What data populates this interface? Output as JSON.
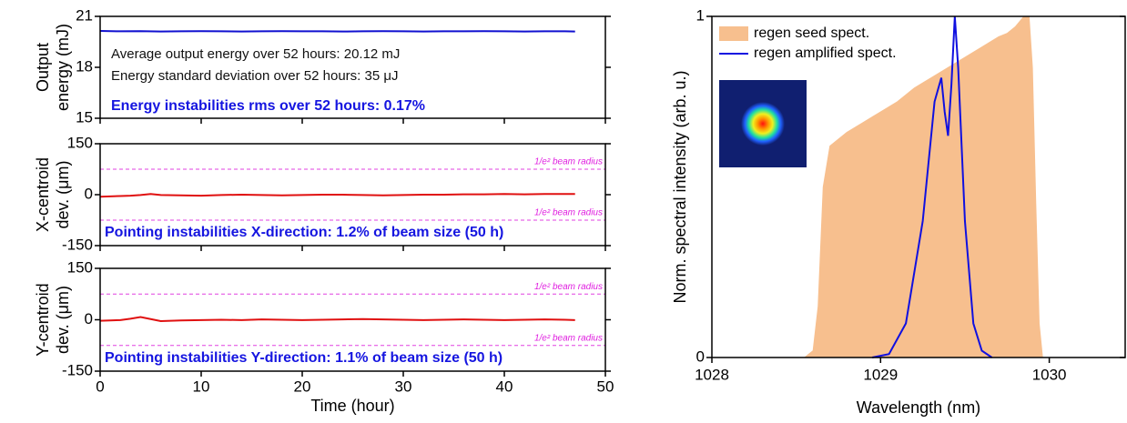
{
  "chart_data": [
    {
      "type": "line",
      "xlabel": "Time (hour)",
      "xlim": [
        0,
        50
      ],
      "xticks": [
        0,
        10,
        20,
        30,
        40,
        50
      ],
      "panels": [
        {
          "ylabel": [
            "Output",
            "energy (mJ)"
          ],
          "ylim": [
            15,
            21
          ],
          "yticks": [
            15,
            18,
            21
          ],
          "series": [
            {
              "color": "#1010d0",
              "x": [
                0,
                2,
                4,
                6,
                8,
                10,
                12,
                14,
                16,
                18,
                20,
                22,
                24,
                26,
                28,
                30,
                32,
                34,
                36,
                38,
                40,
                42,
                44,
                46,
                47
              ],
              "values": [
                20.14,
                20.12,
                20.13,
                20.11,
                20.12,
                20.13,
                20.12,
                20.11,
                20.12,
                20.13,
                20.12,
                20.12,
                20.11,
                20.12,
                20.13,
                20.12,
                20.11,
                20.12,
                20.12,
                20.13,
                20.12,
                20.11,
                20.12,
                20.12,
                20.11
              ]
            }
          ],
          "hlines": [],
          "annotations": [
            {
              "text": "Average output energy over 52 hours: 20.12 mJ",
              "color": "#111111",
              "bold": false
            },
            {
              "text": "Energy standard deviation over 52 hours: 35 μJ",
              "color": "#111111",
              "bold": false
            },
            {
              "text": "Energy instabilities rms over 52 hours: 0.17%",
              "color": "#1515e0",
              "bold": true
            }
          ]
        },
        {
          "ylabel": [
            "X-centroid",
            "dev. (μm)"
          ],
          "ylim": [
            -150,
            150
          ],
          "yticks": [
            -150,
            0,
            150
          ],
          "series": [
            {
              "color": "#e01010",
              "x": [
                0,
                1,
                2,
                3,
                4,
                5,
                6,
                8,
                10,
                12,
                14,
                16,
                18,
                20,
                22,
                24,
                26,
                28,
                30,
                32,
                34,
                36,
                38,
                40,
                42,
                44,
                46,
                47
              ],
              "values": [
                -6,
                -5,
                -4,
                -3,
                -1,
                2,
                -1,
                -2,
                -3,
                -1,
                0,
                -1,
                -2,
                -1,
                0,
                0,
                -1,
                -2,
                -1,
                0,
                0,
                1,
                1,
                2,
                1,
                2,
                2,
                2
              ]
            }
          ],
          "hlines": [
            {
              "value": 75,
              "label": "1/e² beam radius"
            },
            {
              "value": -75,
              "label": "1/e² beam radius"
            }
          ],
          "annotations": [
            {
              "text": "Pointing instabilities X-direction: 1.2% of beam size (50 h)",
              "color": "#1515e0",
              "bold": true
            }
          ]
        },
        {
          "ylabel": [
            "Y-centroid",
            "dev. (μm)"
          ],
          "ylim": [
            -150,
            150
          ],
          "yticks": [
            -150,
            0,
            150
          ],
          "series": [
            {
              "color": "#e01010",
              "x": [
                0,
                1,
                2,
                3,
                4,
                5,
                6,
                8,
                10,
                12,
                14,
                16,
                18,
                20,
                22,
                24,
                26,
                28,
                30,
                32,
                34,
                36,
                38,
                40,
                42,
                44,
                46,
                47
              ],
              "values": [
                -3,
                -2,
                -1,
                3,
                8,
                2,
                -4,
                -2,
                -1,
                0,
                -1,
                1,
                0,
                -1,
                0,
                1,
                2,
                1,
                0,
                -1,
                0,
                1,
                0,
                -1,
                0,
                1,
                0,
                -1
              ]
            }
          ],
          "hlines": [
            {
              "value": 75,
              "label": "1/e² beam radius"
            },
            {
              "value": -75,
              "label": "1/e² beam radius"
            }
          ],
          "annotations": [
            {
              "text": "Pointing instabilities Y-direction: 1.1% of beam size (50 h)",
              "color": "#1515e0",
              "bold": true
            }
          ]
        }
      ]
    },
    {
      "type": "spectrum",
      "xlabel": "Wavelength (nm)",
      "ylabel": "Norm. spectral intensity (arb. u.)",
      "xlim": [
        1028,
        1030.45
      ],
      "xticks": [
        1028,
        1029,
        1030
      ],
      "ylim": [
        0,
        1
      ],
      "yticks": [
        0,
        1
      ],
      "series": [
        {
          "name": "regen seed spect.",
          "kind": "area",
          "color": "#f7bf8e",
          "x": [
            1028.55,
            1028.6,
            1028.63,
            1028.66,
            1028.7,
            1028.75,
            1028.8,
            1028.9,
            1029.0,
            1029.1,
            1029.2,
            1029.3,
            1029.4,
            1029.5,
            1029.6,
            1029.7,
            1029.75,
            1029.8,
            1029.85,
            1029.88,
            1029.9,
            1029.92,
            1029.94,
            1029.96
          ],
          "values": [
            0,
            0.02,
            0.15,
            0.5,
            0.62,
            0.64,
            0.66,
            0.69,
            0.72,
            0.75,
            0.79,
            0.82,
            0.85,
            0.88,
            0.91,
            0.94,
            0.95,
            0.97,
            1.0,
            1.0,
            0.85,
            0.45,
            0.1,
            0
          ]
        },
        {
          "name": "regen amplified spect.",
          "kind": "line",
          "color": "#1010e0",
          "x": [
            1028.95,
            1029.05,
            1029.15,
            1029.25,
            1029.32,
            1029.36,
            1029.38,
            1029.4,
            1029.42,
            1029.44,
            1029.46,
            1029.5,
            1029.55,
            1029.6,
            1029.66
          ],
          "values": [
            0,
            0.01,
            0.1,
            0.4,
            0.75,
            0.82,
            0.72,
            0.65,
            0.8,
            1.0,
            0.85,
            0.4,
            0.1,
            0.02,
            0
          ]
        }
      ]
    }
  ]
}
